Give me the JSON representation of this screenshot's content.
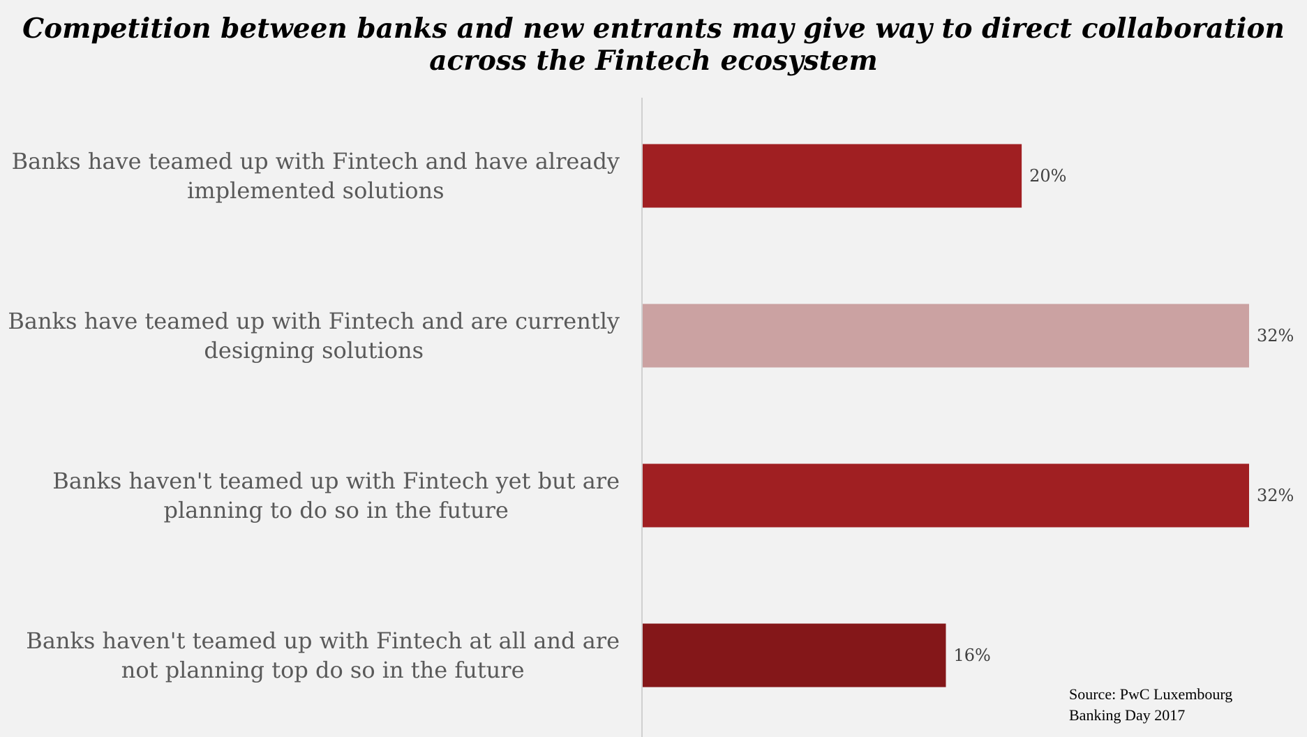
{
  "chart_data": {
    "type": "bar",
    "orientation": "horizontal",
    "title": "Competition between banks and new entrants may give way to direct collaboration across the Fintech ecosystem",
    "categories": [
      [
        "Banks have teamed up with Fintech and have already",
        "implemented solutions"
      ],
      [
        "Banks have teamed up with Fintech and are currently",
        "designing solutions"
      ],
      [
        "Banks haven't teamed up with Fintech yet but are",
        "planning to do so in the future"
      ],
      [
        "Banks haven't teamed up with Fintech at all and are",
        "not planning top do so in the future"
      ]
    ],
    "values": [
      20,
      32,
      32,
      16
    ],
    "value_labels": [
      "20%",
      "32%",
      "32%",
      "16%"
    ],
    "colors": [
      "#a01f22",
      "#cba2a2",
      "#a01f22",
      "#841719"
    ],
    "xlim": [
      0,
      32
    ],
    "grid": false,
    "legend": "none"
  },
  "source": {
    "line1": "Source: PwC Luxembourg",
    "line2": "Banking Day 2017"
  }
}
